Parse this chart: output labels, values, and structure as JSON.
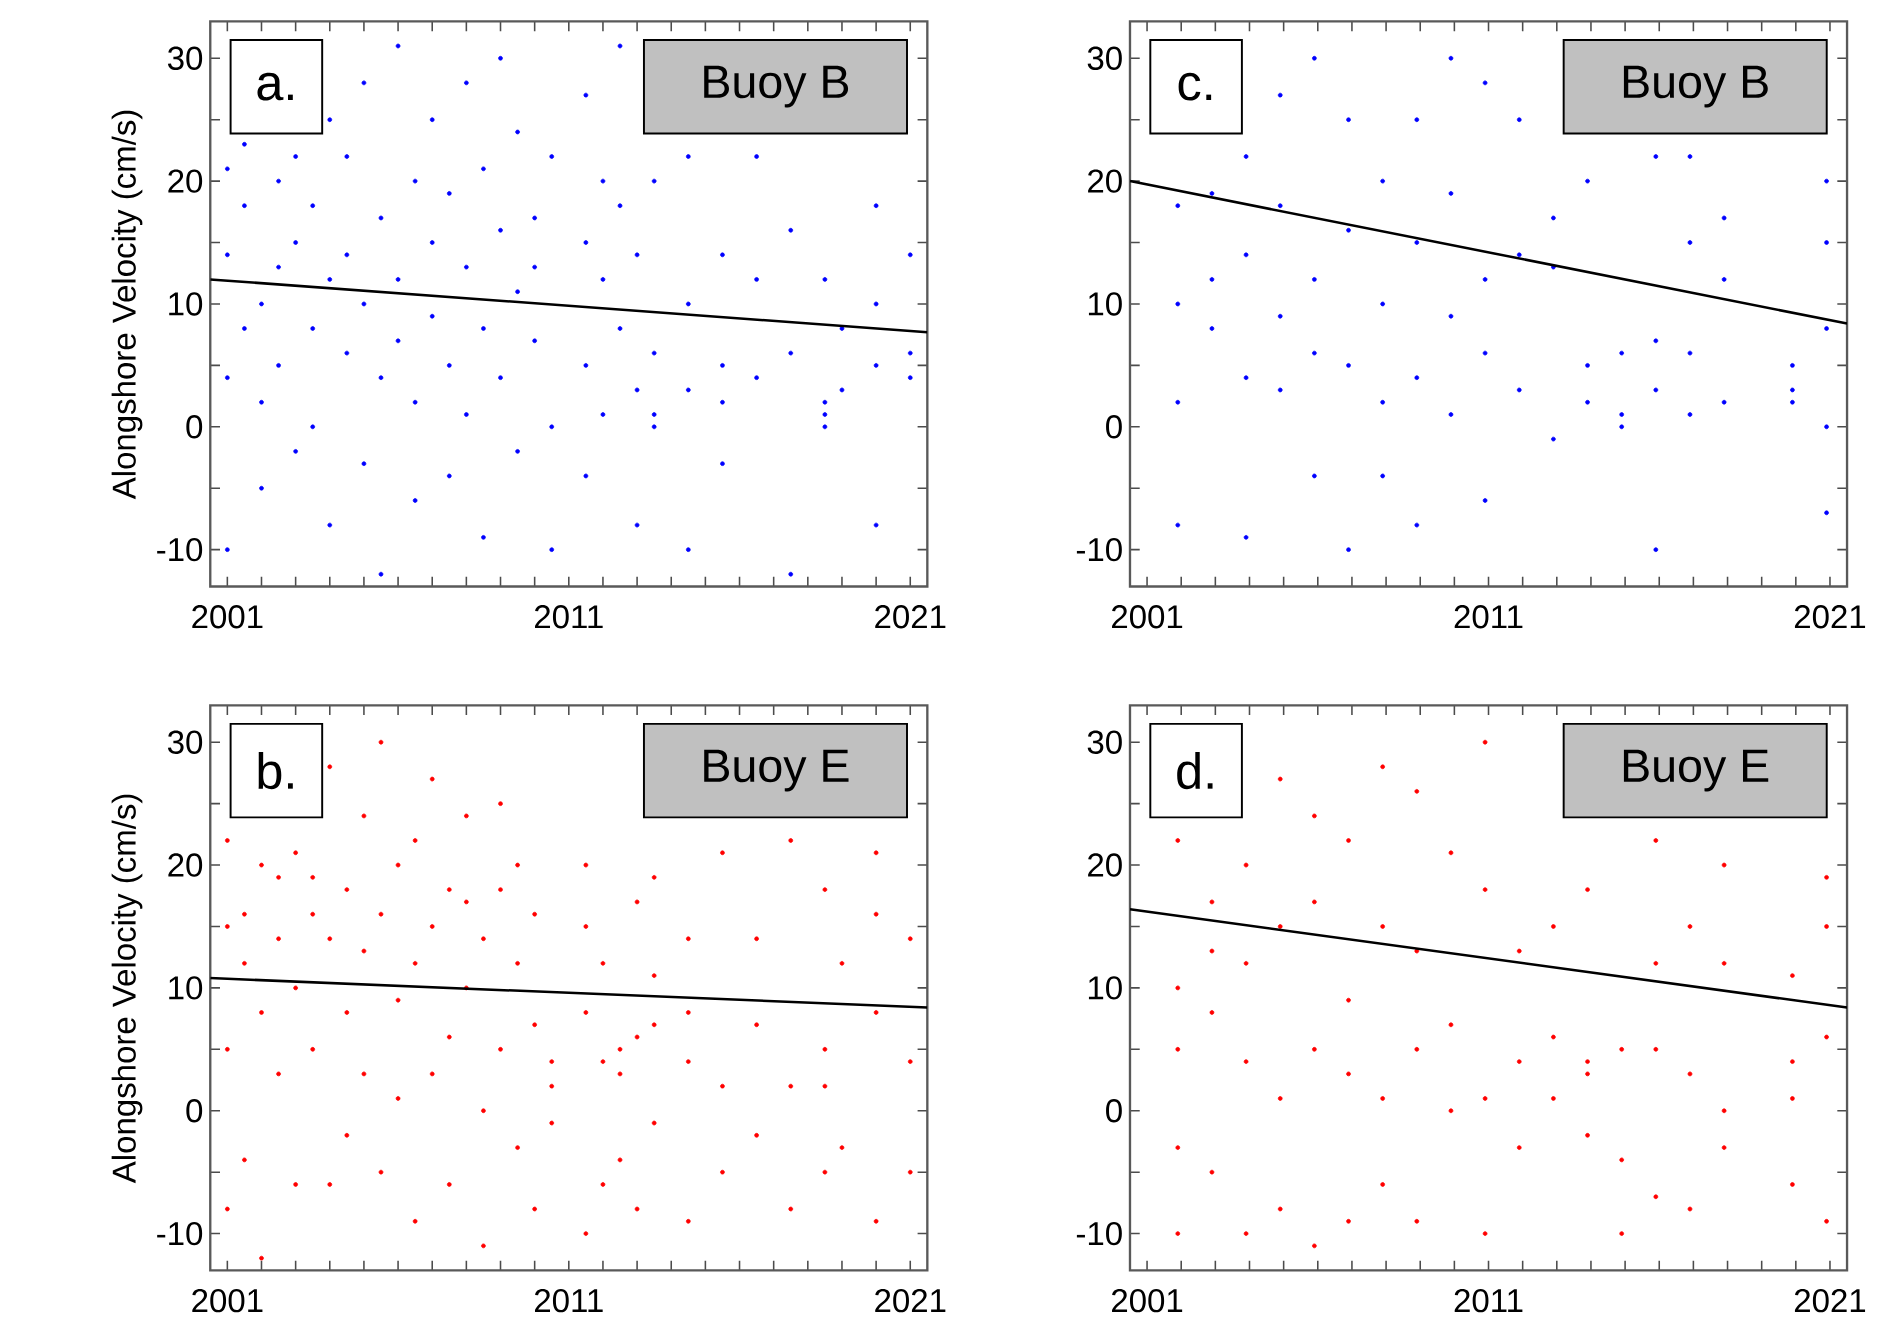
{
  "chart_data": [
    {
      "type": "scatter",
      "ylabel": "Alongshore Velocity (cm/s)",
      "marker": "circle",
      "annotations": [
        "a.",
        "Buoy B"
      ],
      "xlim": [
        2000.5,
        2021.5
      ],
      "ylim": [
        -13,
        33
      ],
      "xticks": [
        2001,
        {
          "value": 2002,
          "label": null
        },
        {
          "value": 2003,
          "label": null
        },
        {
          "value": 2004,
          "label": null
        },
        {
          "value": 2005,
          "label": null
        },
        {
          "value": 2006,
          "label": null
        },
        {
          "value": 2007,
          "label": null
        },
        {
          "value": 2008,
          "label": null
        },
        {
          "value": 2009,
          "label": null
        },
        {
          "value": 2010,
          "label": null
        },
        2011,
        {
          "value": 2012,
          "label": null
        },
        {
          "value": 2013,
          "label": null
        },
        {
          "value": 2014,
          "label": null
        },
        {
          "value": 2015,
          "label": null
        },
        {
          "value": 2016,
          "label": null
        },
        {
          "value": 2017,
          "label": null
        },
        {
          "value": 2018,
          "label": null
        },
        {
          "value": 2019,
          "label": null
        },
        {
          "value": 2020,
          "label": null
        },
        2021
      ],
      "yticks": [
        -10,
        {
          "value": -5,
          "label": null
        },
        0,
        {
          "value": 5,
          "label": null
        },
        10,
        {
          "value": 15,
          "label": null
        },
        20,
        {
          "value": 25,
          "label": null
        },
        30
      ],
      "series": [
        {
          "color": "#0000ff",
          "x": [
            2001.0,
            2001.0,
            2001.0,
            2001.0,
            2001.5,
            2001.5,
            2001.5,
            2002.0,
            2002.0,
            2002.0,
            2002.5,
            2002.5,
            2002.5,
            2003.0,
            2003.0,
            2003.0,
            2003.5,
            2003.5,
            2003.5,
            2004.0,
            2004.0,
            2004.0,
            2004.5,
            2004.5,
            2004.5,
            2005.0,
            2005.0,
            2005.0,
            2005.5,
            2005.5,
            2005.5,
            2006.0,
            2006.0,
            2006.0,
            2006.5,
            2006.5,
            2006.5,
            2007.0,
            2007.0,
            2007.0,
            2007.5,
            2007.5,
            2007.5,
            2008.0,
            2008.0,
            2008.0,
            2008.5,
            2008.5,
            2008.5,
            2009.0,
            2009.0,
            2009.0,
            2009.5,
            2009.5,
            2009.5,
            2010.0,
            2010.0,
            2010.0,
            2010.5,
            2010.5,
            2010.5,
            2011.5,
            2011.5,
            2011.5,
            2011.5,
            2012.0,
            2012.0,
            2012.0,
            2012.5,
            2012.5,
            2012.5,
            2013.0,
            2013.0,
            2013.0,
            2013.5,
            2013.5,
            2013.5,
            2013.5,
            2014.5,
            2014.5,
            2014.5,
            2014.5,
            2015.5,
            2015.5,
            2015.5,
            2015.5,
            2016.5,
            2016.5,
            2016.5,
            2017.5,
            2017.5,
            2017.5,
            2018.5,
            2018.5,
            2018.5,
            2018.5,
            2019.0,
            2019.0,
            2020.0,
            2020.0,
            2020.0,
            2020.0,
            2021.0,
            2021.0,
            2021.0
          ],
          "values": [
            14,
            4,
            -10,
            21,
            18,
            8,
            23,
            10,
            2,
            -5,
            20,
            5,
            13,
            15,
            22,
            -2,
            8,
            18,
            0,
            25,
            12,
            -8,
            6,
            14,
            22,
            10,
            -3,
            28,
            4,
            17,
            -12,
            12,
            31,
            7,
            20,
            2,
            -6,
            9,
            15,
            25,
            5,
            19,
            -4,
            13,
            28,
            1,
            21,
            8,
            -9,
            16,
            4,
            30,
            11,
            24,
            -2,
            7,
            17,
            13,
            0,
            -10,
            22,
            15,
            5,
            27,
            -4,
            12,
            1,
            20,
            18,
            8,
            31,
            3,
            -8,
            14,
            1,
            0,
            6,
            20,
            10,
            3,
            22,
            -10,
            5,
            2,
            14,
            -3,
            12,
            4,
            22,
            16,
            6,
            -12,
            1,
            2,
            0,
            12,
            3,
            8,
            10,
            5,
            18,
            -8,
            6,
            4,
            14
          ]
        },
        {
          "type": "line",
          "marker": "none",
          "color": "#000000",
          "x": [
            2000.5,
            2021.5
          ],
          "values": [
            12,
            7.7
          ]
        }
      ]
    },
    {
      "type": "scatter",
      "marker": "circle",
      "annotations": [
        "c.",
        "Buoy B"
      ],
      "xlim": [
        2000.5,
        2021.5
      ],
      "ylim": [
        -13,
        33
      ],
      "xticks": [
        2001,
        {
          "value": 2002,
          "label": null
        },
        {
          "value": 2003,
          "label": null
        },
        {
          "value": 2004,
          "label": null
        },
        {
          "value": 2005,
          "label": null
        },
        {
          "value": 2006,
          "label": null
        },
        {
          "value": 2007,
          "label": null
        },
        {
          "value": 2008,
          "label": null
        },
        {
          "value": 2009,
          "label": null
        },
        {
          "value": 2010,
          "label": null
        },
        2011,
        {
          "value": 2012,
          "label": null
        },
        {
          "value": 2013,
          "label": null
        },
        {
          "value": 2014,
          "label": null
        },
        {
          "value": 2015,
          "label": null
        },
        {
          "value": 2016,
          "label": null
        },
        {
          "value": 2017,
          "label": null
        },
        {
          "value": 2018,
          "label": null
        },
        {
          "value": 2019,
          "label": null
        },
        {
          "value": 2020,
          "label": null
        },
        2021
      ],
      "yticks": [
        -10,
        {
          "value": -5,
          "label": null
        },
        0,
        {
          "value": 5,
          "label": null
        },
        10,
        {
          "value": 15,
          "label": null
        },
        20,
        {
          "value": 25,
          "label": null
        },
        30
      ],
      "series": [
        {
          "color": "#0000ff",
          "x": [
            2001.9,
            2001.9,
            2001.9,
            2001.9,
            2002.9,
            2002.9,
            2002.9,
            2003.9,
            2003.9,
            2003.9,
            2003.9,
            2004.9,
            2004.9,
            2004.9,
            2004.9,
            2005.9,
            2005.9,
            2005.9,
            2005.9,
            2006.9,
            2006.9,
            2006.9,
            2006.9,
            2007.9,
            2007.9,
            2007.9,
            2007.9,
            2008.9,
            2008.9,
            2008.9,
            2008.9,
            2009.9,
            2009.9,
            2009.9,
            2009.9,
            2010.9,
            2010.9,
            2010.9,
            2010.9,
            2011.9,
            2011.9,
            2011.9,
            2012.9,
            2012.9,
            2012.9,
            2013.9,
            2013.9,
            2013.9,
            2014.9,
            2014.9,
            2014.9,
            2015.9,
            2015.9,
            2015.9,
            2015.9,
            2016.9,
            2016.9,
            2016.9,
            2016.9,
            2017.9,
            2017.9,
            2017.9,
            2019.9,
            2019.9,
            2019.9,
            2020.9,
            2020.9,
            2020.9,
            2020.9,
            2020.9
          ],
          "values": [
            10,
            -8,
            18,
            2,
            19,
            12,
            8,
            14,
            4,
            -9,
            22,
            9,
            3,
            18,
            27,
            6,
            12,
            -4,
            30,
            5,
            16,
            -10,
            25,
            10,
            2,
            20,
            -4,
            15,
            4,
            -8,
            25,
            9,
            19,
            1,
            30,
            12,
            6,
            -6,
            28,
            14,
            3,
            25,
            13,
            17,
            -1,
            5,
            2,
            20,
            1,
            0,
            6,
            7,
            3,
            -10,
            22,
            6,
            1,
            15,
            22,
            12,
            2,
            17,
            2,
            3,
            5,
            8,
            0,
            15,
            -7,
            20
          ]
        },
        {
          "type": "line",
          "marker": "none",
          "color": "#000000",
          "x": [
            2000.5,
            2021.5
          ],
          "values": [
            20,
            8.4
          ]
        }
      ]
    },
    {
      "type": "scatter",
      "ylabel": "Alongshore Velocity (cm/s)",
      "marker": "circle",
      "annotations": [
        "b.",
        "Buoy E"
      ],
      "xlim": [
        2000.5,
        2021.5
      ],
      "ylim": [
        -13,
        33
      ],
      "xticks": [
        2001,
        {
          "value": 2002,
          "label": null
        },
        {
          "value": 2003,
          "label": null
        },
        {
          "value": 2004,
          "label": null
        },
        {
          "value": 2005,
          "label": null
        },
        {
          "value": 2006,
          "label": null
        },
        {
          "value": 2007,
          "label": null
        },
        {
          "value": 2008,
          "label": null
        },
        {
          "value": 2009,
          "label": null
        },
        {
          "value": 2010,
          "label": null
        },
        2011,
        {
          "value": 2012,
          "label": null
        },
        {
          "value": 2013,
          "label": null
        },
        {
          "value": 2014,
          "label": null
        },
        {
          "value": 2015,
          "label": null
        },
        {
          "value": 2016,
          "label": null
        },
        {
          "value": 2017,
          "label": null
        },
        {
          "value": 2018,
          "label": null
        },
        {
          "value": 2019,
          "label": null
        },
        {
          "value": 2020,
          "label": null
        },
        2021
      ],
      "yticks": [
        -10,
        {
          "value": -5,
          "label": null
        },
        0,
        {
          "value": 5,
          "label": null
        },
        10,
        {
          "value": 15,
          "label": null
        },
        20,
        {
          "value": 25,
          "label": null
        },
        30
      ],
      "series": [
        {
          "color": "#ff0000",
          "x": [
            2001.0,
            2001.0,
            2001.0,
            2001.0,
            2001.5,
            2001.5,
            2001.5,
            2002.0,
            2002.0,
            2002.0,
            2002.5,
            2002.5,
            2002.5,
            2003.0,
            2003.0,
            2003.0,
            2003.5,
            2003.5,
            2003.5,
            2004.0,
            2004.0,
            2004.0,
            2004.5,
            2004.5,
            2004.5,
            2005.0,
            2005.0,
            2005.0,
            2005.5,
            2005.5,
            2005.5,
            2006.0,
            2006.0,
            2006.0,
            2006.5,
            2006.5,
            2006.5,
            2007.0,
            2007.0,
            2007.0,
            2007.5,
            2007.5,
            2007.5,
            2008.0,
            2008.0,
            2008.0,
            2008.5,
            2008.5,
            2008.5,
            2009.0,
            2009.0,
            2009.0,
            2009.5,
            2009.5,
            2009.5,
            2010.0,
            2010.0,
            2010.0,
            2010.5,
            2010.5,
            2010.5,
            2011.5,
            2011.5,
            2011.5,
            2011.5,
            2012.0,
            2012.0,
            2012.0,
            2012.5,
            2012.5,
            2012.5,
            2013.0,
            2013.0,
            2013.0,
            2013.5,
            2013.5,
            2013.5,
            2013.5,
            2014.5,
            2014.5,
            2014.5,
            2014.5,
            2015.5,
            2015.5,
            2015.5,
            2016.5,
            2016.5,
            2016.5,
            2017.5,
            2017.5,
            2017.5,
            2018.5,
            2018.5,
            2018.5,
            2018.5,
            2019.0,
            2019.0,
            2020.0,
            2020.0,
            2020.0,
            2020.0,
            2021.0,
            2021.0,
            2021.0
          ],
          "values": [
            15,
            5,
            -8,
            22,
            16,
            12,
            -4,
            20,
            8,
            -12,
            14,
            3,
            19,
            10,
            -6,
            21,
            16,
            5,
            19,
            14,
            -6,
            28,
            18,
            8,
            -2,
            24,
            13,
            3,
            16,
            -5,
            30,
            9,
            20,
            1,
            22,
            12,
            -9,
            15,
            3,
            27,
            6,
            18,
            -6,
            17,
            10,
            24,
            14,
            0,
            -11,
            18,
            5,
            25,
            12,
            -3,
            20,
            7,
            16,
            -8,
            2,
            -1,
            4,
            20,
            8,
            -10,
            15,
            12,
            4,
            -6,
            5,
            3,
            -4,
            6,
            17,
            -8,
            19,
            7,
            -1,
            11,
            8,
            14,
            -9,
            4,
            2,
            -5,
            21,
            14,
            7,
            -2,
            22,
            2,
            -8,
            5,
            2,
            -5,
            18,
            12,
            -3,
            16,
            8,
            -9,
            21,
            14,
            -5,
            4
          ]
        },
        {
          "type": "line",
          "marker": "none",
          "color": "#000000",
          "x": [
            2000.5,
            2021.5
          ],
          "values": [
            10.8,
            8.4
          ]
        }
      ]
    },
    {
      "type": "scatter",
      "marker": "circle",
      "annotations": [
        "d.",
        "Buoy E"
      ],
      "xlim": [
        2000.5,
        2021.5
      ],
      "ylim": [
        -13,
        33
      ],
      "xticks": [
        2001,
        {
          "value": 2002,
          "label": null
        },
        {
          "value": 2003,
          "label": null
        },
        {
          "value": 2004,
          "label": null
        },
        {
          "value": 2005,
          "label": null
        },
        {
          "value": 2006,
          "label": null
        },
        {
          "value": 2007,
          "label": null
        },
        {
          "value": 2008,
          "label": null
        },
        {
          "value": 2009,
          "label": null
        },
        {
          "value": 2010,
          "label": null
        },
        2011,
        {
          "value": 2012,
          "label": null
        },
        {
          "value": 2013,
          "label": null
        },
        {
          "value": 2014,
          "label": null
        },
        {
          "value": 2015,
          "label": null
        },
        {
          "value": 2016,
          "label": null
        },
        {
          "value": 2017,
          "label": null
        },
        {
          "value": 2018,
          "label": null
        },
        {
          "value": 2019,
          "label": null
        },
        {
          "value": 2020,
          "label": null
        },
        2021
      ],
      "yticks": [
        -10,
        {
          "value": -5,
          "label": null
        },
        0,
        {
          "value": 5,
          "label": null
        },
        10,
        {
          "value": 15,
          "label": null
        },
        20,
        {
          "value": 25,
          "label": null
        },
        30
      ],
      "series": [
        {
          "color": "#ff0000",
          "x": [
            2001.9,
            2001.9,
            2001.9,
            2001.9,
            2001.9,
            2002.9,
            2002.9,
            2002.9,
            2002.9,
            2003.9,
            2003.9,
            2003.9,
            2003.9,
            2004.9,
            2004.9,
            2004.9,
            2004.9,
            2005.9,
            2005.9,
            2005.9,
            2005.9,
            2006.9,
            2006.9,
            2006.9,
            2006.9,
            2007.9,
            2007.9,
            2007.9,
            2007.9,
            2008.9,
            2008.9,
            2008.9,
            2008.9,
            2009.9,
            2009.9,
            2009.9,
            2010.9,
            2010.9,
            2010.9,
            2010.9,
            2011.9,
            2011.9,
            2011.9,
            2012.9,
            2012.9,
            2012.9,
            2013.9,
            2013.9,
            2013.9,
            2013.9,
            2014.9,
            2014.9,
            2014.9,
            2015.9,
            2015.9,
            2015.9,
            2015.9,
            2016.9,
            2016.9,
            2016.9,
            2017.9,
            2017.9,
            2017.9,
            2017.9,
            2019.9,
            2019.9,
            2019.9,
            2019.9,
            2020.9,
            2020.9,
            2020.9,
            2020.9
          ],
          "values": [
            22,
            10,
            -3,
            5,
            -10,
            8,
            13,
            -5,
            17,
            12,
            4,
            -10,
            20,
            15,
            1,
            -8,
            27,
            17,
            5,
            -11,
            24,
            9,
            22,
            -9,
            3,
            28,
            15,
            1,
            -6,
            26,
            13,
            -9,
            5,
            21,
            7,
            0,
            18,
            1,
            -10,
            30,
            4,
            -3,
            13,
            15,
            6,
            1,
            4,
            3,
            18,
            -2,
            -4,
            5,
            -10,
            12,
            5,
            -7,
            22,
            15,
            3,
            -8,
            12,
            0,
            20,
            -3,
            4,
            1,
            -6,
            11,
            15,
            6,
            -9,
            19
          ]
        },
        {
          "type": "line",
          "marker": "none",
          "color": "#000000",
          "x": [
            2000.5,
            2021.5
          ],
          "values": [
            16.4,
            8.4
          ]
        }
      ]
    }
  ]
}
